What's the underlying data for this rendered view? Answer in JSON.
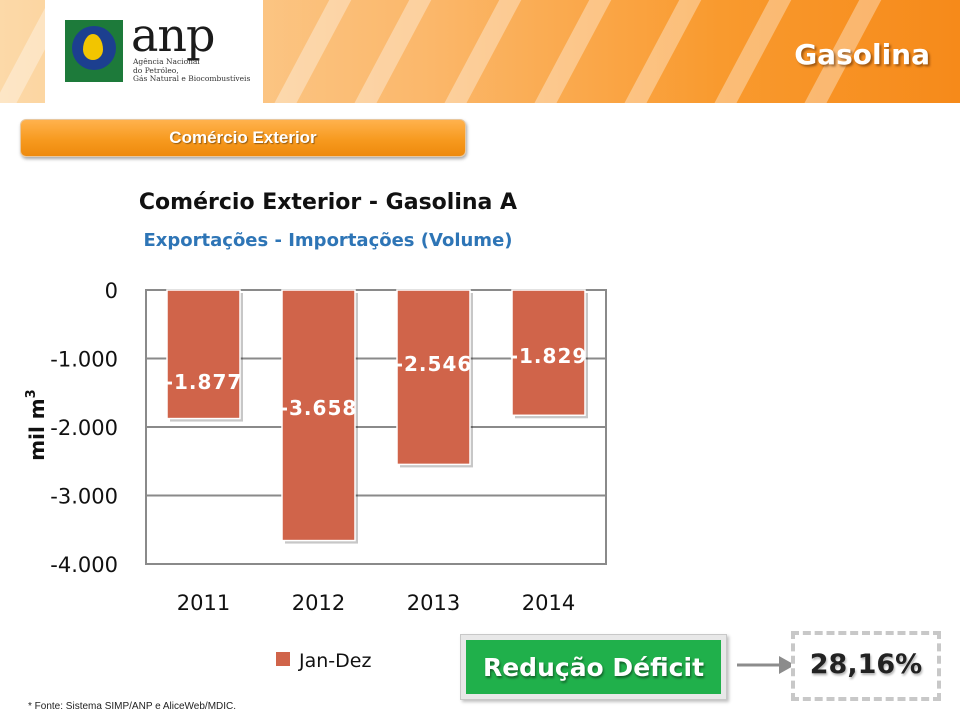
{
  "header": {
    "page_title": "Gasolina",
    "logo_text": "anp",
    "logo_subtitle_lines": [
      "Agência Nacional",
      "do Petróleo,",
      "Gás Natural e Biocombustíveis"
    ]
  },
  "section": {
    "label": "Comércio Exterior"
  },
  "chart_data": {
    "type": "bar",
    "title": "Comércio Exterior - Gasolina A",
    "subtitle": "Exportações - Importações (Volume)",
    "ylabel": "mil m",
    "ylabel_superscript": "3",
    "categories": [
      "2011",
      "2012",
      "2013",
      "2014"
    ],
    "series": [
      {
        "name": "Jan-Dez",
        "values": [
          -1877,
          -3658,
          -2546,
          -1829
        ],
        "labels": [
          "-1.877",
          "-3.658",
          "-2.546",
          "-1.829"
        ],
        "color": "#d0644a"
      }
    ],
    "ylim": [
      -4000,
      0
    ],
    "yticks": [
      0,
      -1000,
      -2000,
      -3000,
      -4000
    ],
    "ytick_labels": [
      "0",
      "-1.000",
      "-2.000",
      "-3.000",
      "-4.000"
    ],
    "grid": true,
    "legend_position": "bottom-left"
  },
  "reduction": {
    "label": "Redução Déficit",
    "value": "28,16%",
    "accent": "#20b04b"
  },
  "footnote": "* Fonte: Sistema SIMP/ANP e AliceWeb/MDIC."
}
